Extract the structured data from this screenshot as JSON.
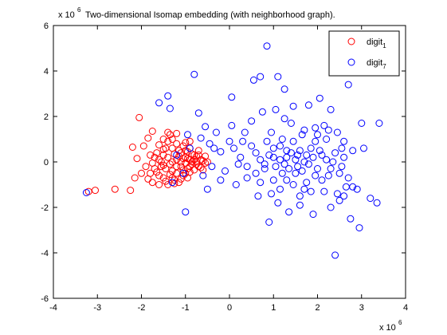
{
  "chart_data": {
    "type": "scatter",
    "title": "Two-dimensional Isomap embedding (with neighborhood graph).",
    "xlabel": "",
    "ylabel": "",
    "x_multiplier": {
      "base": "x 10",
      "exponent": "6"
    },
    "y_multiplier": {
      "base": "x 10",
      "exponent": "6"
    },
    "xlim": [
      -4,
      4
    ],
    "ylim": [
      -6,
      6
    ],
    "xticks": [
      -4,
      -3,
      -2,
      -1,
      0,
      1,
      2,
      3,
      4
    ],
    "yticks": [
      -6,
      -4,
      -2,
      0,
      2,
      4,
      6
    ],
    "xtick_labels": [
      "-4",
      "-3",
      "-2",
      "-1",
      "0",
      "1",
      "2",
      "3",
      "4"
    ],
    "ytick_labels": [
      "-6",
      "-4",
      "-2",
      "0",
      "2",
      "4",
      "6"
    ],
    "grid": false,
    "legend_position": "top-right",
    "marker": "circle-open",
    "series": [
      {
        "name_base": "digit",
        "name_sub": "1",
        "color": "#ff0000",
        "points": [
          [
            -3.2,
            -1.3
          ],
          [
            -3.05,
            -1.25
          ],
          [
            -2.6,
            -1.2
          ],
          [
            -2.25,
            -1.25
          ],
          [
            -2.15,
            -0.7
          ],
          [
            -2.1,
            0.15
          ],
          [
            -2.05,
            1.95
          ],
          [
            -1.85,
            1.05
          ],
          [
            -1.75,
            1.35
          ],
          [
            -2.2,
            0.65
          ],
          [
            -1.95,
            0.7
          ],
          [
            -1.8,
            -0.5
          ],
          [
            -1.75,
            -0.9
          ],
          [
            -1.6,
            -0.6
          ],
          [
            -1.55,
            -0.2
          ],
          [
            -1.5,
            0.3
          ],
          [
            -1.45,
            0.6
          ],
          [
            -1.4,
            0.9
          ],
          [
            -1.35,
            1.2
          ],
          [
            -1.3,
            -0.4
          ],
          [
            -1.25,
            -0.8
          ],
          [
            -1.2,
            0.1
          ],
          [
            -1.15,
            0.5
          ],
          [
            -1.1,
            -0.2
          ],
          [
            -1.05,
            -0.6
          ],
          [
            -1.0,
            0.2
          ],
          [
            -0.95,
            -0.3
          ],
          [
            -0.9,
            0.1
          ],
          [
            -0.85,
            -0.1
          ],
          [
            -0.8,
            0.3
          ],
          [
            -0.75,
            0.0
          ],
          [
            -0.7,
            -0.2
          ],
          [
            -0.65,
            0.1
          ],
          [
            -0.6,
            0.05
          ],
          [
            -0.55,
            -0.05
          ],
          [
            -0.5,
            0.0
          ],
          [
            -1.65,
            0.4
          ],
          [
            -1.6,
            -1.0
          ],
          [
            -1.5,
            -0.7
          ],
          [
            -1.4,
            -1.0
          ],
          [
            -1.35,
            -0.1
          ],
          [
            -1.3,
            0.6
          ],
          [
            -1.25,
            0.35
          ],
          [
            -1.2,
            -0.5
          ],
          [
            -1.15,
            -0.9
          ],
          [
            -1.1,
            0.4
          ],
          [
            -1.05,
            0.7
          ],
          [
            -1.0,
            -0.5
          ],
          [
            -0.95,
            0.45
          ],
          [
            -0.9,
            -0.45
          ],
          [
            -0.85,
            0.35
          ],
          [
            -0.8,
            -0.35
          ],
          [
            -0.75,
            0.25
          ],
          [
            -0.7,
            0.3
          ],
          [
            -0.65,
            -0.25
          ],
          [
            -1.85,
            -0.75
          ],
          [
            -1.7,
            -0.3
          ],
          [
            -1.7,
            0.2
          ],
          [
            -1.55,
            0.0
          ],
          [
            -1.45,
            -0.3
          ],
          [
            -1.4,
            0.2
          ],
          [
            -1.3,
            -0.7
          ],
          [
            -1.2,
            0.8
          ],
          [
            -1.1,
            -0.75
          ],
          [
            -1.0,
            0.5
          ],
          [
            -0.95,
            -0.7
          ],
          [
            -0.9,
            0.6
          ],
          [
            -1.3,
            0.0
          ],
          [
            -1.2,
            -0.2
          ],
          [
            -1.1,
            0.0
          ],
          [
            -1.05,
            -0.35
          ],
          [
            -1.0,
            -0.05
          ],
          [
            -0.95,
            0.15
          ],
          [
            -0.9,
            -0.2
          ],
          [
            -0.85,
            0.0
          ],
          [
            -0.8,
            0.1
          ],
          [
            -0.75,
            -0.1
          ],
          [
            -1.6,
            0.75
          ],
          [
            -1.5,
            1.0
          ],
          [
            -1.4,
            1.3
          ],
          [
            -1.3,
            1.0
          ],
          [
            -1.2,
            1.25
          ],
          [
            -1.0,
            0.85
          ],
          [
            -0.9,
            0.9
          ],
          [
            -2.0,
            -0.5
          ],
          [
            -1.9,
            -0.2
          ],
          [
            -1.8,
            0.3
          ],
          [
            -1.65,
            -0.45
          ],
          [
            -1.5,
            0.55
          ],
          [
            -1.45,
            -0.85
          ],
          [
            -1.35,
            -0.55
          ],
          [
            -1.25,
            -0.95
          ],
          [
            -1.15,
            0.25
          ],
          [
            -1.05,
            0.15
          ],
          [
            -0.7,
            0.5
          ],
          [
            -0.6,
            -0.35
          ],
          [
            -0.55,
            0.25
          ],
          [
            -1.75,
            -0.05
          ],
          [
            -1.6,
            0.1
          ],
          [
            -1.5,
            -0.15
          ]
        ]
      },
      {
        "name_base": "digit",
        "name_sub": "7",
        "color": "#0000ff",
        "points": [
          [
            -3.25,
            -1.35
          ],
          [
            -1.6,
            2.6
          ],
          [
            -1.4,
            2.9
          ],
          [
            -1.35,
            2.35
          ],
          [
            -0.8,
            3.85
          ],
          [
            -0.95,
            1.2
          ],
          [
            -1.0,
            -2.2
          ],
          [
            -0.7,
            2.15
          ],
          [
            -0.55,
            1.55
          ],
          [
            -0.45,
            0.8
          ],
          [
            -0.3,
            1.3
          ],
          [
            -0.2,
            0.45
          ],
          [
            -0.1,
            -0.4
          ],
          [
            0.05,
            2.85
          ],
          [
            0.05,
            1.6
          ],
          [
            0.1,
            0.6
          ],
          [
            0.15,
            -1.0
          ],
          [
            0.25,
            0.2
          ],
          [
            0.35,
            1.3
          ],
          [
            0.4,
            -0.7
          ],
          [
            0.5,
            1.8
          ],
          [
            0.55,
            3.6
          ],
          [
            0.6,
            0.4
          ],
          [
            0.65,
            -1.5
          ],
          [
            0.7,
            3.75
          ],
          [
            0.75,
            2.2
          ],
          [
            0.8,
            -0.3
          ],
          [
            0.85,
            5.1
          ],
          [
            0.85,
            0.9
          ],
          [
            0.9,
            -2.65
          ],
          [
            0.95,
            1.3
          ],
          [
            1.0,
            0.2
          ],
          [
            1.0,
            -0.8
          ],
          [
            1.05,
            2.3
          ],
          [
            1.1,
            3.75
          ],
          [
            1.15,
            -1.2
          ],
          [
            1.2,
            1.0
          ],
          [
            1.25,
            3.2
          ],
          [
            1.25,
            -0.1
          ],
          [
            1.3,
            0.5
          ],
          [
            1.35,
            -2.2
          ],
          [
            1.4,
            1.7
          ],
          [
            1.45,
            2.45
          ],
          [
            1.5,
            -0.5
          ],
          [
            1.55,
            0.3
          ],
          [
            1.6,
            -1.5
          ],
          [
            1.65,
            1.2
          ],
          [
            1.7,
            0.0
          ],
          [
            1.75,
            -0.9
          ],
          [
            1.8,
            2.5
          ],
          [
            1.85,
            0.6
          ],
          [
            1.9,
            -2.3
          ],
          [
            1.95,
            1.5
          ],
          [
            2.0,
            -0.3
          ],
          [
            2.05,
            2.8
          ],
          [
            2.1,
            0.3
          ],
          [
            2.15,
            -1.3
          ],
          [
            2.2,
            1.0
          ],
          [
            2.25,
            -0.6
          ],
          [
            2.3,
            2.3
          ],
          [
            2.35,
            0.0
          ],
          [
            2.4,
            -4.1
          ],
          [
            2.45,
            1.3
          ],
          [
            2.5,
            -1.7
          ],
          [
            2.55,
            -0.2
          ],
          [
            2.6,
            0.9
          ],
          [
            2.65,
            -1.1
          ],
          [
            2.7,
            3.4
          ],
          [
            2.75,
            -2.5
          ],
          [
            2.8,
            0.5
          ],
          [
            2.9,
            -1.2
          ],
          [
            2.95,
            -2.9
          ],
          [
            3.0,
            1.7
          ],
          [
            3.05,
            0.6
          ],
          [
            3.2,
            -1.6
          ],
          [
            3.35,
            -1.8
          ],
          [
            3.4,
            1.7
          ],
          [
            0.4,
            -0.2
          ],
          [
            0.6,
            -0.5
          ],
          [
            0.7,
            0.1
          ],
          [
            0.8,
            -0.1
          ],
          [
            0.9,
            0.3
          ],
          [
            1.0,
            0.6
          ],
          [
            1.05,
            -0.2
          ],
          [
            1.15,
            0.1
          ],
          [
            1.2,
            -0.5
          ],
          [
            1.3,
            0.2
          ],
          [
            1.35,
            -0.3
          ],
          [
            1.4,
            0.4
          ],
          [
            1.5,
            0.1
          ],
          [
            1.55,
            -0.2
          ],
          [
            1.6,
            0.5
          ],
          [
            1.65,
            -0.4
          ],
          [
            1.75,
            0.3
          ],
          [
            1.8,
            -0.1
          ],
          [
            1.9,
            0.2
          ],
          [
            1.95,
            -0.6
          ],
          [
            2.05,
            0.5
          ],
          [
            2.1,
            -0.8
          ],
          [
            2.2,
            0.1
          ],
          [
            2.3,
            -0.3
          ],
          [
            2.4,
            0.4
          ],
          [
            2.5,
            -0.5
          ],
          [
            2.6,
            0.2
          ],
          [
            2.7,
            -0.7
          ],
          [
            0.5,
            0.7
          ],
          [
            0.7,
            -0.9
          ],
          [
            0.95,
            -1.4
          ],
          [
            1.1,
            -1.8
          ],
          [
            1.25,
            1.9
          ],
          [
            1.45,
            -1.0
          ],
          [
            1.6,
            -1.9
          ],
          [
            1.7,
            1.4
          ],
          [
            1.85,
            -1.3
          ],
          [
            2.0,
            1.2
          ],
          [
            2.15,
            1.6
          ],
          [
            2.3,
            -2.0
          ],
          [
            2.45,
            -1.4
          ],
          [
            2.6,
            -1.5
          ],
          [
            2.8,
            -1.1
          ],
          [
            -0.6,
            -0.6
          ],
          [
            -0.4,
            -0.2
          ],
          [
            -0.35,
            0.6
          ],
          [
            -0.2,
            -0.8
          ],
          [
            0.0,
            0.9
          ],
          [
            0.2,
            -0.1
          ],
          [
            0.3,
            0.9
          ],
          [
            -0.9,
            0.6
          ],
          [
            -1.05,
            -0.5
          ],
          [
            -1.2,
            0.3
          ],
          [
            -1.3,
            -0.9
          ],
          [
            -0.65,
            1.05
          ],
          [
            -0.5,
            -1.2
          ],
          [
            1.15,
            0.7
          ],
          [
            1.3,
            -0.8
          ],
          [
            1.45,
            0.9
          ],
          [
            1.7,
            -1.2
          ],
          [
            1.95,
            0.9
          ],
          [
            2.25,
            1.4
          ],
          [
            2.55,
            0.6
          ]
        ]
      }
    ]
  }
}
